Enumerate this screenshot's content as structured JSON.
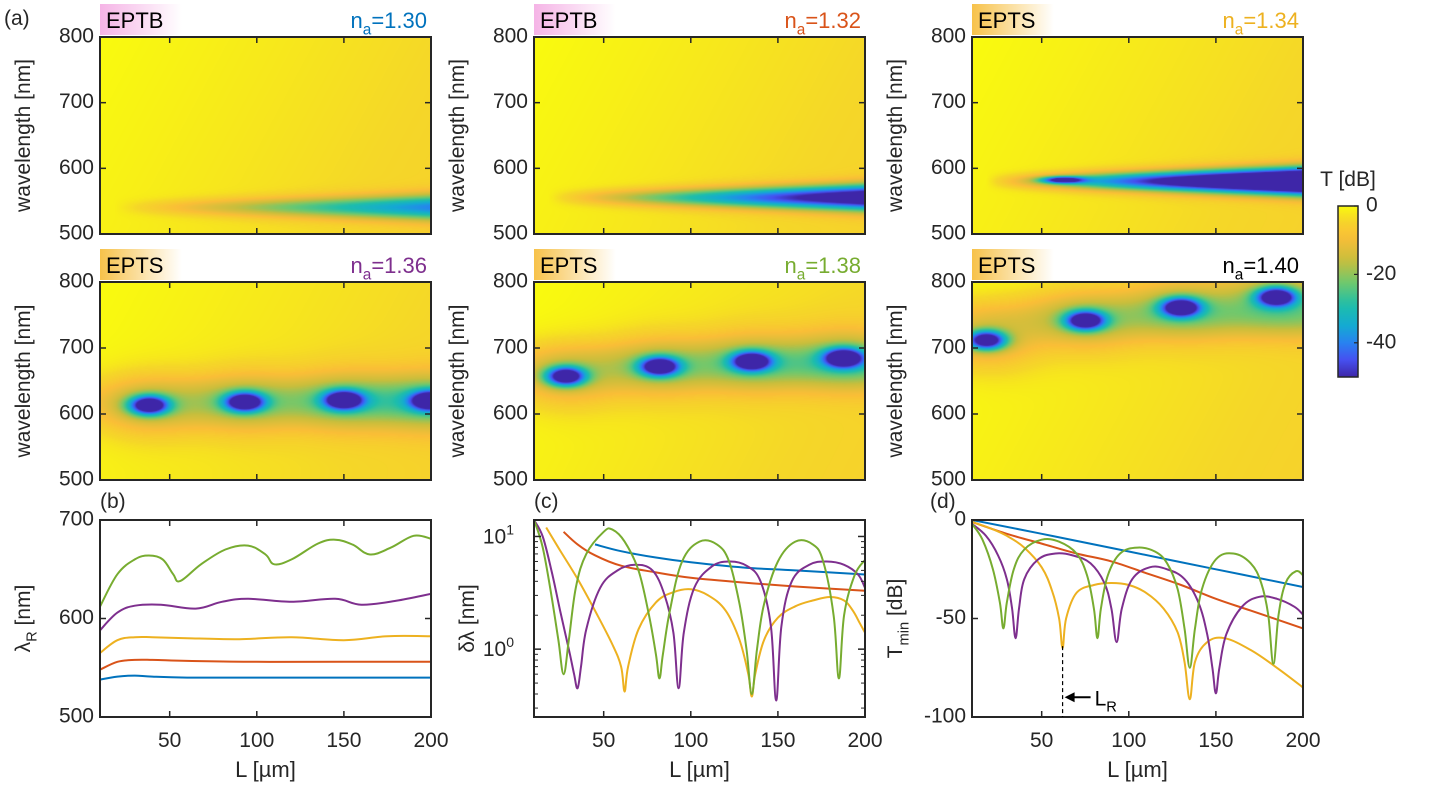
{
  "colors": {
    "blue": "#0072BD",
    "orange": "#D95319",
    "yellow": "#EDB120",
    "purple": "#7E2F8E",
    "green": "#77AC30",
    "black": "#000000",
    "eptb_banner": "#F5B4E6",
    "epts_banner": "#F7C24A"
  },
  "colorbar": {
    "title": "T [dB]",
    "ticks": [
      "0",
      "-20",
      "-40"
    ],
    "range": [
      -50,
      0
    ]
  },
  "maps": [
    {
      "panel_label": "(a)",
      "mode": "EPTB",
      "na_prefix": "n",
      "na_sub": "a",
      "na_value": "=1.30",
      "na_color": "#0072BD"
    },
    {
      "panel_label": "",
      "mode": "EPTB",
      "na_prefix": "n",
      "na_sub": "a",
      "na_value": "=1.32",
      "na_color": "#D95319"
    },
    {
      "panel_label": "",
      "mode": "EPTS",
      "na_prefix": "n",
      "na_sub": "a",
      "na_value": "=1.34",
      "na_color": "#EDB120"
    },
    {
      "panel_label": "",
      "mode": "EPTS",
      "na_prefix": "n",
      "na_sub": "a",
      "na_value": "=1.36",
      "na_color": "#7E2F8E"
    },
    {
      "panel_label": "",
      "mode": "EPTS",
      "na_prefix": "n",
      "na_sub": "a",
      "na_value": "=1.38",
      "na_color": "#77AC30"
    },
    {
      "panel_label": "",
      "mode": "EPTS",
      "na_prefix": "n",
      "na_sub": "a",
      "na_value": "=1.40",
      "na_color": "#000000"
    }
  ],
  "chart_data": [
    {
      "type": "heatmap",
      "panel": "(a)",
      "ylabel": "wavelength [nm]",
      "xlim": [
        10,
        200
      ],
      "ylim": [
        500,
        800
      ],
      "yticks": [
        "500",
        "600",
        "700",
        "800"
      ],
      "z_label": "T [dB]",
      "z_range": [
        -50,
        0
      ],
      "minima": [
        {
          "n_a": 1.3,
          "points": [
            {
              "L": 200,
              "wavelength": 540,
              "T": -33
            }
          ]
        },
        {
          "n_a": 1.32,
          "points": [
            {
              "L": 195,
              "wavelength": 555,
              "T": -55
            }
          ]
        },
        {
          "n_a": 1.34,
          "points": [
            {
              "L": 62,
              "wavelength": 582,
              "T": -62
            },
            {
              "L": 190,
              "wavelength": 580,
              "T": -85
            }
          ]
        },
        {
          "n_a": 1.36,
          "points": [
            {
              "L": 38,
              "wavelength": 613,
              "T": -60
            },
            {
              "L": 93,
              "wavelength": 618,
              "T": -60
            },
            {
              "L": 150,
              "wavelength": 621,
              "T": -88
            },
            {
              "L": 200,
              "wavelength": 620,
              "T": -50
            }
          ]
        },
        {
          "n_a": 1.38,
          "points": [
            {
              "L": 28,
              "wavelength": 657,
              "T": -55
            },
            {
              "L": 82,
              "wavelength": 672,
              "T": -55
            },
            {
              "L": 135,
              "wavelength": 680,
              "T": -75
            },
            {
              "L": 188,
              "wavelength": 685,
              "T": -75
            }
          ]
        },
        {
          "n_a": 1.4,
          "points": [
            {
              "L": 18,
              "wavelength": 712,
              "T": -45
            },
            {
              "L": 75,
              "wavelength": 742,
              "T": -45
            },
            {
              "L": 130,
              "wavelength": 762,
              "T": -45
            },
            {
              "L": 185,
              "wavelength": 778,
              "T": -45
            }
          ]
        }
      ]
    },
    {
      "type": "line",
      "panel": "(b)",
      "xlabel": "L [µm]",
      "ylabel_main": "λ",
      "ylabel_sub": "R",
      "ylabel_unit": " [nm]",
      "xlim": [
        10,
        200
      ],
      "ylim": [
        500,
        700
      ],
      "xticks": [
        "50",
        "100",
        "150",
        "200"
      ],
      "yticks": [
        "500",
        "600",
        "700"
      ],
      "series": [
        {
          "color": "#0072BD",
          "x": [
            10,
            20,
            30,
            40,
            60,
            100,
            150,
            200
          ],
          "y": [
            538,
            541,
            542,
            541,
            540,
            540,
            540,
            540
          ]
        },
        {
          "color": "#D95319",
          "x": [
            10,
            20,
            30,
            40,
            60,
            100,
            150,
            200
          ],
          "y": [
            548,
            556,
            558,
            558,
            557,
            556,
            556,
            556
          ]
        },
        {
          "color": "#EDB120",
          "x": [
            10,
            20,
            30,
            40,
            60,
            90,
            120,
            150,
            175,
            200
          ],
          "y": [
            565,
            578,
            581,
            581,
            580,
            579,
            581,
            578,
            582,
            582
          ]
        },
        {
          "color": "#7E2F8E",
          "x": [
            10,
            20,
            30,
            45,
            65,
            80,
            95,
            120,
            145,
            160,
            180,
            200
          ],
          "y": [
            588,
            606,
            613,
            614,
            610,
            617,
            620,
            617,
            620,
            614,
            618,
            625
          ]
        },
        {
          "color": "#77AC30",
          "x": [
            10,
            20,
            30,
            38,
            46,
            52,
            56,
            68,
            82,
            95,
            105,
            110,
            120,
            135,
            145,
            155,
            165,
            177,
            190,
            200
          ],
          "y": [
            612,
            645,
            660,
            664,
            660,
            645,
            638,
            655,
            670,
            674,
            665,
            655,
            660,
            676,
            680,
            675,
            665,
            672,
            684,
            681
          ]
        }
      ]
    },
    {
      "type": "line",
      "panel": "(c)",
      "xlabel": "L [µm]",
      "ylabel": "δλ [nm]",
      "yscale": "log",
      "xlim": [
        10,
        200
      ],
      "ylim": [
        0.25,
        14
      ],
      "xticks": [
        "50",
        "100",
        "150",
        "200"
      ],
      "ytick_base": "10",
      "ytick_exponents": [
        "0",
        "1"
      ],
      "series": [
        {
          "color": "#0072BD",
          "x": [
            45,
            60,
            80,
            100,
            130,
            160,
            200
          ],
          "y": [
            8.5,
            7.4,
            6.5,
            5.9,
            5.3,
            5.0,
            4.6
          ]
        },
        {
          "color": "#D95319",
          "x": [
            27,
            35,
            45,
            60,
            80,
            100,
            130,
            160,
            200
          ],
          "y": [
            11,
            8.5,
            6.8,
            5.5,
            4.8,
            4.3,
            3.9,
            3.6,
            3.3
          ]
        },
        {
          "color": "#EDB120",
          "x": [
            17,
            25,
            35,
            45,
            55,
            60,
            62,
            64,
            70,
            80,
            90,
            100,
            110,
            120,
            128,
            133,
            135,
            137,
            142,
            150,
            160,
            170,
            180,
            188,
            193,
            197,
            200
          ],
          "y": [
            12,
            7.5,
            4.2,
            2.2,
            1.1,
            0.7,
            0.42,
            0.7,
            1.5,
            2.6,
            3.2,
            3.4,
            3.0,
            2.2,
            1.2,
            0.6,
            0.38,
            0.6,
            1.2,
            1.9,
            2.4,
            2.7,
            2.9,
            2.7,
            2.2,
            1.7,
            1.4
          ]
        },
        {
          "color": "#7E2F8E",
          "x": [
            10,
            15,
            20,
            25,
            30,
            33,
            35,
            37,
            40,
            48,
            58,
            68,
            78,
            85,
            90,
            93,
            96,
            102,
            112,
            122,
            132,
            140,
            146,
            149,
            152,
            158,
            168,
            178,
            188,
            196,
            200
          ],
          "y": [
            14,
            10,
            5,
            2.2,
            1.0,
            0.6,
            0.45,
            0.7,
            1.5,
            3.5,
            5.0,
            5.6,
            5.0,
            3.0,
            1.4,
            0.45,
            1.4,
            3.5,
            5.4,
            6.0,
            5.5,
            4.0,
            1.6,
            0.35,
            1.6,
            4.0,
            5.6,
            6.0,
            5.6,
            4.6,
            3.5
          ]
        },
        {
          "color": "#77AC30",
          "x": [
            10,
            15,
            20,
            24,
            27,
            30,
            34,
            40,
            50,
            55,
            62,
            70,
            76,
            80,
            82,
            84,
            88,
            95,
            105,
            115,
            122,
            128,
            132,
            135,
            138,
            142,
            150,
            160,
            170,
            176,
            182,
            185,
            188,
            194,
            200
          ],
          "y": [
            14,
            8,
            3.0,
            1.2,
            0.6,
            1.2,
            3.5,
            7,
            11,
            11.5,
            9,
            5,
            2.0,
            0.9,
            0.55,
            0.9,
            2.2,
            6,
            9,
            8.5,
            6,
            2.5,
            1.0,
            0.4,
            1.0,
            2.5,
            6,
            9,
            8.5,
            6,
            2.0,
            0.55,
            2.0,
            4.5,
            6.2
          ]
        }
      ]
    },
    {
      "type": "line",
      "panel": "(d)",
      "xlabel": "L [µm]",
      "ylabel_main": "T",
      "ylabel_sub": "min",
      "ylabel_unit": " [dB]",
      "xlim": [
        10,
        200
      ],
      "ylim": [
        -100,
        0
      ],
      "xticks": [
        "50",
        "100",
        "150",
        "200"
      ],
      "yticks": [
        "0",
        "-50",
        "-100"
      ],
      "annotation": {
        "label_main": "L",
        "label_sub": "R",
        "x": 62,
        "y_from": -64,
        "y_to": -100
      },
      "series": [
        {
          "color": "#0072BD",
          "x": [
            10,
            50,
            100,
            150,
            200
          ],
          "y": [
            0,
            -7,
            -16,
            -25,
            -34
          ]
        },
        {
          "color": "#D95319",
          "x": [
            10,
            30,
            50,
            70,
            90,
            110,
            130,
            150,
            170,
            200
          ],
          "y": [
            -1,
            -7,
            -12,
            -17,
            -21,
            -27,
            -33,
            -40,
            -46,
            -55
          ]
        },
        {
          "color": "#EDB120",
          "x": [
            10,
            20,
            30,
            40,
            50,
            56,
            60,
            62,
            64,
            70,
            80,
            90,
            100,
            110,
            120,
            128,
            132,
            135,
            138,
            145,
            155,
            170,
            185,
            200
          ],
          "y": [
            -1,
            -4,
            -8,
            -14,
            -24,
            -36,
            -50,
            -65,
            -50,
            -37,
            -33,
            -32,
            -33,
            -37,
            -45,
            -57,
            -72,
            -91,
            -72,
            -62,
            -60,
            -66,
            -75,
            -85
          ]
        },
        {
          "color": "#7E2F8E",
          "x": [
            10,
            18,
            25,
            30,
            33,
            35,
            37,
            40,
            48,
            58,
            68,
            78,
            86,
            90,
            93,
            96,
            102,
            112,
            122,
            132,
            140,
            145,
            148,
            150,
            152,
            156,
            165,
            175,
            185,
            195,
            200
          ],
          "y": [
            -2,
            -8,
            -18,
            -30,
            -45,
            -60,
            -45,
            -30,
            -20,
            -17,
            -18,
            -22,
            -32,
            -45,
            -62,
            -45,
            -30,
            -24,
            -25,
            -30,
            -42,
            -58,
            -75,
            -88,
            -75,
            -58,
            -44,
            -39,
            -40,
            -44,
            -48
          ]
        },
        {
          "color": "#77AC30",
          "x": [
            10,
            16,
            22,
            26,
            28,
            30,
            34,
            40,
            50,
            60,
            70,
            76,
            80,
            82,
            84,
            88,
            95,
            105,
            115,
            122,
            128,
            132,
            135,
            138,
            142,
            150,
            160,
            170,
            176,
            180,
            183,
            186,
            190,
            196,
            200
          ],
          "y": [
            -2,
            -10,
            -25,
            -42,
            -55,
            -42,
            -25,
            -15,
            -10,
            -11,
            -17,
            -28,
            -45,
            -60,
            -45,
            -28,
            -17,
            -14,
            -16,
            -22,
            -35,
            -55,
            -75,
            -55,
            -35,
            -20,
            -17,
            -22,
            -32,
            -48,
            -73,
            -48,
            -32,
            -26,
            -28
          ]
        }
      ]
    }
  ]
}
